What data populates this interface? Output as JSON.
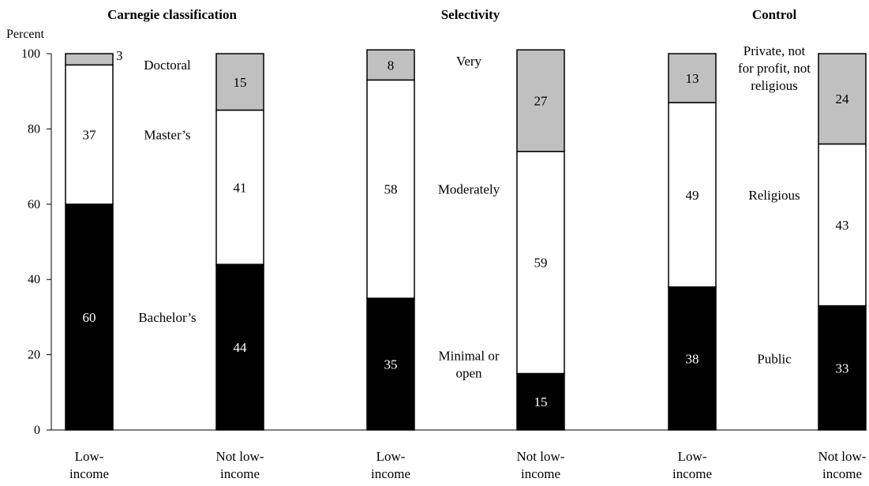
{
  "chart_data": {
    "type": "bar",
    "stacked": true,
    "ylabel": "Percent",
    "ylim": [
      0,
      100
    ],
    "yticks": [
      0,
      20,
      40,
      60,
      80,
      100
    ],
    "grid": false,
    "colors": {
      "bottom": "#000000",
      "middle": "#ffffff",
      "top": "#c0c0c0"
    },
    "panels": [
      {
        "title": "Carnegie classification",
        "categories": [
          "Low-\nincome",
          "Not low-\nincome"
        ],
        "series": [
          {
            "name": "Bachelor’s",
            "values": [
              60,
              44
            ]
          },
          {
            "name": "Master’s",
            "values": [
              37,
              41
            ]
          },
          {
            "name": "Doctoral",
            "values": [
              3,
              15
            ]
          }
        ]
      },
      {
        "title": "Selectivity",
        "categories": [
          "Low-\nincome",
          "Not low-\nincome"
        ],
        "series": [
          {
            "name": "Minimal or\nopen",
            "values": [
              35,
              15
            ]
          },
          {
            "name": "Moderately",
            "values": [
              58,
              59
            ]
          },
          {
            "name": "Very",
            "values": [
              8,
              27
            ]
          }
        ]
      },
      {
        "title": "Control",
        "categories": [
          "Low-\nincome",
          "Not low-\nincome"
        ],
        "series": [
          {
            "name": "Public",
            "values": [
              38,
              33
            ]
          },
          {
            "name": "Religious",
            "values": [
              49,
              43
            ]
          },
          {
            "name": "Private, not\nfor profit, not\nreligious",
            "values": [
              13,
              24
            ]
          }
        ]
      }
    ]
  }
}
